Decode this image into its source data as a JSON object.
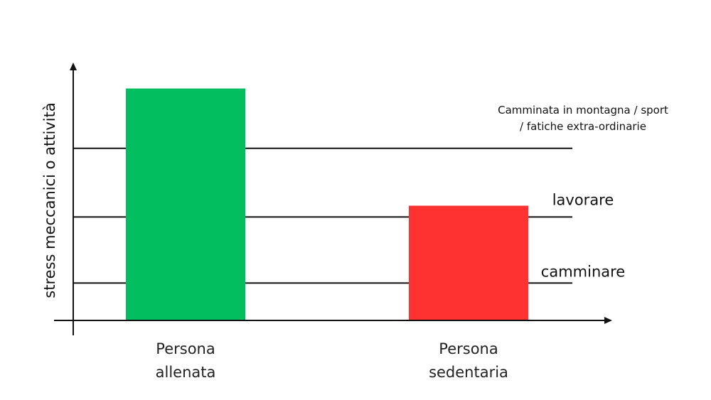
{
  "chart_data": {
    "type": "bar",
    "title": "",
    "xlabel": "",
    "ylabel": "stress meccanici o attività",
    "ylim": [
      0,
      10
    ],
    "grid": false,
    "categories": [
      [
        "Persona",
        "allenata"
      ],
      [
        "Persona",
        "sedentaria"
      ]
    ],
    "values": [
      9.3,
      4.6
    ],
    "colors": [
      "#02BE5F",
      "#FF3232"
    ],
    "reference_lines": [
      {
        "value": 1.5,
        "label": [
          "camminare"
        ]
      },
      {
        "value": 4.15,
        "label": [
          "lavorare"
        ]
      },
      {
        "value": 6.9,
        "label": [
          "Camminata in montagna  /  sport",
          "/  fatiche extra-ordinarie"
        ]
      }
    ]
  }
}
